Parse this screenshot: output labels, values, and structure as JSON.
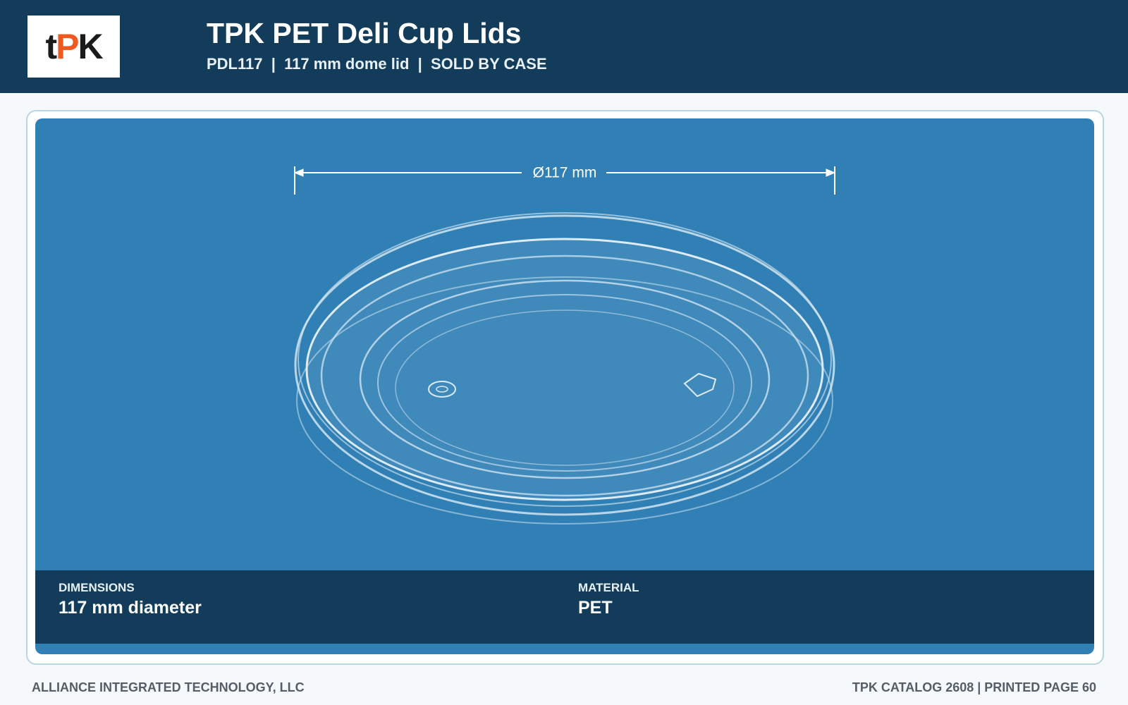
{
  "header": {
    "logo": [
      "t",
      "P",
      "K"
    ],
    "title": "TPK PET Deli Cup Lids",
    "subtitle": "PDL117  |  117 mm dome lid  |  SOLD BY CASE"
  },
  "product": {
    "dimension_label": "Ø117 mm"
  },
  "specs": [
    {
      "label": "DIMENSIONS",
      "value": "117 mm diameter"
    },
    {
      "label": "MATERIAL",
      "value": "PET"
    }
  ],
  "footer": {
    "left": "ALLIANCE INTEGRATED TECHNOLOGY, LLC",
    "right": "TPK CATALOG 2608 | PRINTED PAGE 60"
  }
}
